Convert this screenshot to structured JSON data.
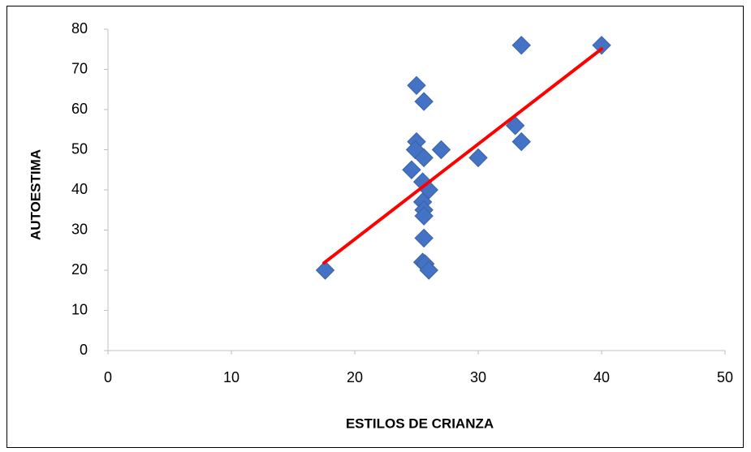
{
  "chart_data": {
    "type": "scatter",
    "x_label": "ESTILOS DE CRIANZA",
    "y_label": "AUTOESTIMA",
    "xlim": [
      0,
      50
    ],
    "xticks": [
      0,
      10,
      20,
      30,
      40,
      50
    ],
    "ylim": [
      0,
      80
    ],
    "yticks": [
      0,
      10,
      20,
      30,
      40,
      50,
      60,
      70,
      80
    ],
    "series": [
      {
        "color": "#4472c4",
        "x": [
          17.6,
          25,
          25.6,
          25,
          24.9,
          24.6,
          25.6,
          25.5,
          26,
          25.5,
          25.6,
          25.6,
          25.6,
          25.5,
          25.7,
          26,
          27,
          30,
          33,
          33.5,
          33.5,
          40
        ],
        "values": [
          20,
          66,
          62,
          52,
          50,
          45,
          48,
          42,
          40,
          37,
          35,
          33.5,
          28,
          22,
          21.6,
          20,
          50,
          48,
          56,
          52,
          76,
          76
        ]
      }
    ],
    "trendline": {
      "color": "#ff0000",
      "x": [
        17.5,
        40
      ],
      "values": [
        21.8,
        75.1
      ]
    }
  }
}
